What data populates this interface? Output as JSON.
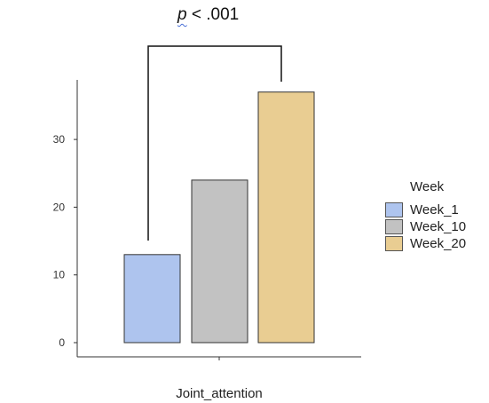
{
  "significance": {
    "p_symbol": "p",
    "text": " < .001"
  },
  "chart_data": {
    "type": "bar",
    "categories": [
      "Joint_attention"
    ],
    "xlabel": "Joint_attention",
    "ylabel": "",
    "ylim": [
      0,
      40
    ],
    "yticks": [
      0,
      10,
      20,
      30
    ],
    "grid": false,
    "legend": {
      "title": "Week",
      "position": "right"
    },
    "series": [
      {
        "name": "Week_1",
        "values": [
          13
        ],
        "color": "#aec4ee"
      },
      {
        "name": "Week_10",
        "values": [
          24
        ],
        "color": "#c2c2c2"
      },
      {
        "name": "Week_20",
        "values": [
          37
        ],
        "color": "#e9cd92"
      }
    ],
    "annotation": {
      "text": "p < .001",
      "between": [
        "Week_1",
        "Week_20"
      ]
    }
  }
}
